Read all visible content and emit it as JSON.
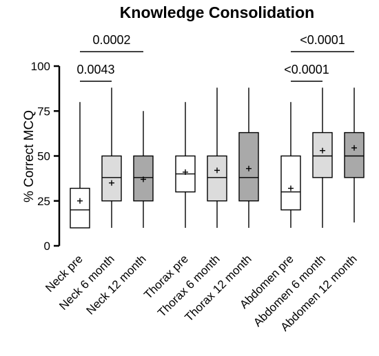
{
  "chart_data": {
    "type": "boxplot",
    "title": "Knowledge Consolidation",
    "ylabel": "% Correct MCQ",
    "ylim": [
      0,
      100
    ],
    "yticks": [
      0,
      25,
      50,
      75,
      100
    ],
    "categories": [
      {
        "label": "Neck pre",
        "min": 10,
        "q1": 10,
        "median": 20,
        "q3": 32,
        "max": 80,
        "mean": 25,
        "fill": "#ffffff"
      },
      {
        "label": "Neck 6 month",
        "min": 10,
        "q1": 25,
        "median": 38,
        "q3": 50,
        "max": 88,
        "mean": 35,
        "fill": "#dcdcdc"
      },
      {
        "label": "Neck 12 month",
        "min": 10,
        "q1": 25,
        "median": 38,
        "q3": 50,
        "max": 75,
        "mean": 37,
        "fill": "#a9a9a9"
      },
      {
        "label": "Thorax pre",
        "min": 10,
        "q1": 30,
        "median": 40,
        "q3": 50,
        "max": 80,
        "mean": 41,
        "fill": "#ffffff"
      },
      {
        "label": "Thorax 6 month",
        "min": 10,
        "q1": 25,
        "median": 38,
        "q3": 50,
        "max": 88,
        "mean": 42,
        "fill": "#dcdcdc"
      },
      {
        "label": "Thorax 12 month",
        "min": 10,
        "q1": 25,
        "median": 38,
        "q3": 63,
        "max": 88,
        "mean": 43,
        "fill": "#a9a9a9"
      },
      {
        "label": "Abdomen pre",
        "min": 10,
        "q1": 20,
        "median": 30,
        "q3": 50,
        "max": 80,
        "mean": 32,
        "fill": "#ffffff"
      },
      {
        "label": "Abdomen 6 month",
        "min": 10,
        "q1": 38,
        "median": 50,
        "q3": 63,
        "max": 88,
        "mean": 53,
        "fill": "#dcdcdc"
      },
      {
        "label": "Abdomen 12 month",
        "min": 13,
        "q1": 38,
        "median": 50,
        "q3": 63,
        "max": 88,
        "mean": 54.5,
        "fill": "#a9a9a9"
      }
    ],
    "significance": [
      {
        "from": 0,
        "to": 1,
        "label": "0.0043",
        "level": 1
      },
      {
        "from": 0,
        "to": 2,
        "label": "0.0002",
        "level": 2
      },
      {
        "from": 6,
        "to": 7,
        "label": "<0.0001",
        "level": 1
      },
      {
        "from": 6,
        "to": 8,
        "label": "<0.0001",
        "level": 2
      }
    ]
  }
}
